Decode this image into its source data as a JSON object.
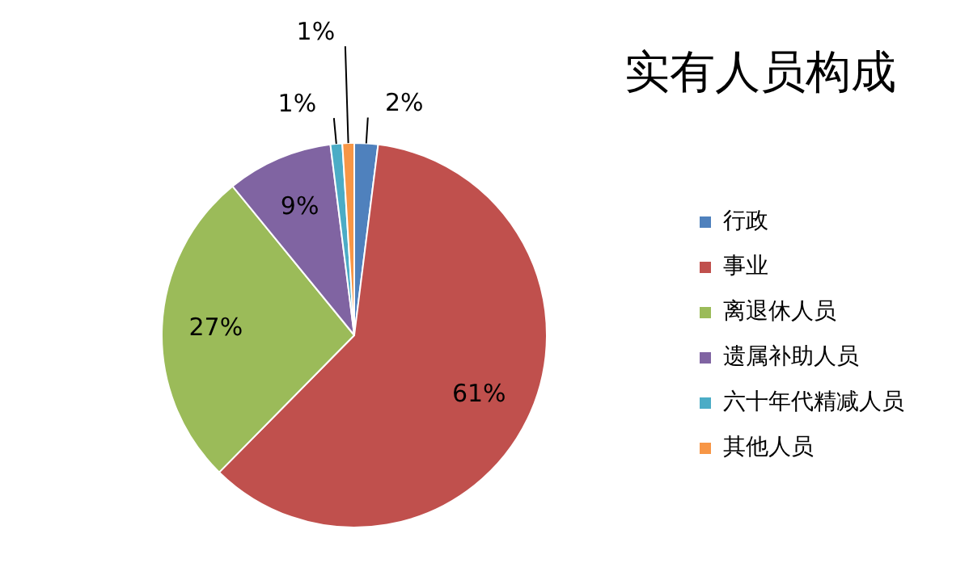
{
  "chart_data": {
    "type": "pie",
    "title": "实有人员构成",
    "categories": [
      "行政",
      "事业",
      "离退休人员",
      "遗属补助人员",
      "六十年代精减人员",
      "其他人员"
    ],
    "values": [
      2,
      61,
      27,
      9,
      1,
      1
    ],
    "colors": [
      "#4f81bd",
      "#c0504d",
      "#9bbb59",
      "#8064a2",
      "#4bacc6",
      "#f79646"
    ],
    "value_labels": [
      "2%",
      "61%",
      "27%",
      "9%",
      "1%",
      "1%"
    ],
    "legend": "right"
  }
}
